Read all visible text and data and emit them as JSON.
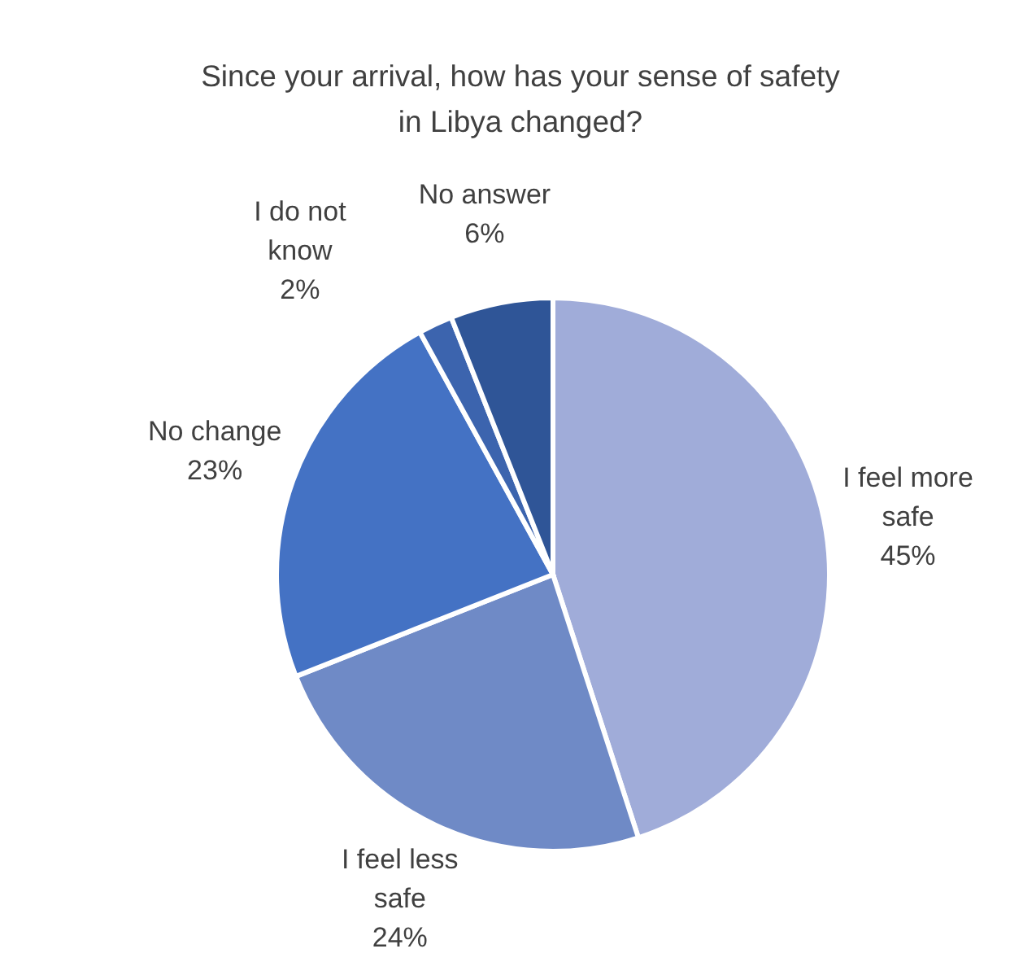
{
  "chart_data": {
    "type": "pie",
    "title": "Since your arrival, how has your sense of safety in Libya changed?",
    "categories": [
      "I feel more safe",
      "I feel less safe",
      "No change",
      "I do not know",
      "No answer"
    ],
    "values": [
      45,
      24,
      23,
      2,
      6
    ],
    "colors": [
      "#a0acd9",
      "#6f8ac6",
      "#4472c4",
      "#3c64ae",
      "#2f5597"
    ],
    "value_labels": [
      "45%",
      "24%",
      "23%",
      "2%",
      "6%"
    ]
  }
}
